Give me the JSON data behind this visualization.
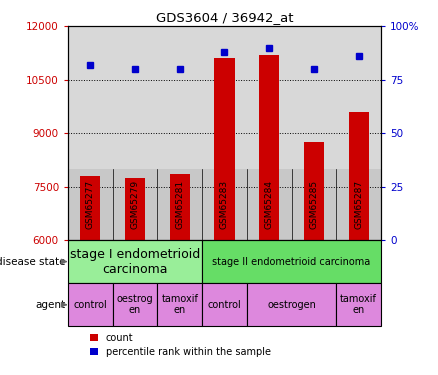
{
  "title": "GDS3604 / 36942_at",
  "samples": [
    "GSM65277",
    "GSM65279",
    "GSM65281",
    "GSM65283",
    "GSM65284",
    "GSM65285",
    "GSM65287"
  ],
  "bar_values": [
    7800,
    7750,
    7850,
    11100,
    11200,
    8750,
    9600
  ],
  "scatter_values": [
    82,
    80,
    80,
    88,
    90,
    80,
    86
  ],
  "ylim_left": [
    6000,
    12000
  ],
  "ylim_right": [
    0,
    100
  ],
  "yticks_left": [
    6000,
    7500,
    9000,
    10500,
    12000
  ],
  "yticks_right": [
    0,
    25,
    50,
    75,
    100
  ],
  "bar_color": "#cc0000",
  "scatter_color": "#0000cc",
  "disease_configs": [
    {
      "label": "stage I endometrioid\ncarcinoma",
      "start": 0,
      "end": 3,
      "color": "#99ee99",
      "fontsize": 9
    },
    {
      "label": "stage II endometrioid carcinoma",
      "start": 3,
      "end": 7,
      "color": "#66dd66",
      "fontsize": 7
    }
  ],
  "agent_configs": [
    {
      "label": "control",
      "start": 0,
      "end": 1
    },
    {
      "label": "oestrog\nen",
      "start": 1,
      "end": 2
    },
    {
      "label": "tamoxif\nen",
      "start": 2,
      "end": 3
    },
    {
      "label": "control",
      "start": 3,
      "end": 4
    },
    {
      "label": "oestrogen",
      "start": 4,
      "end": 6
    },
    {
      "label": "tamoxif\nen",
      "start": 6,
      "end": 7
    }
  ],
  "agent_color": "#dd88dd",
  "plot_bg_color": "#d8d8d8",
  "xtick_bg_color": "#c8c8c8",
  "legend_bar_label": "count",
  "legend_scatter_label": "percentile rank within the sample",
  "left_axis_color": "#cc0000",
  "right_axis_color": "#0000cc",
  "fig_width": 4.38,
  "fig_height": 3.75,
  "dpi": 100
}
